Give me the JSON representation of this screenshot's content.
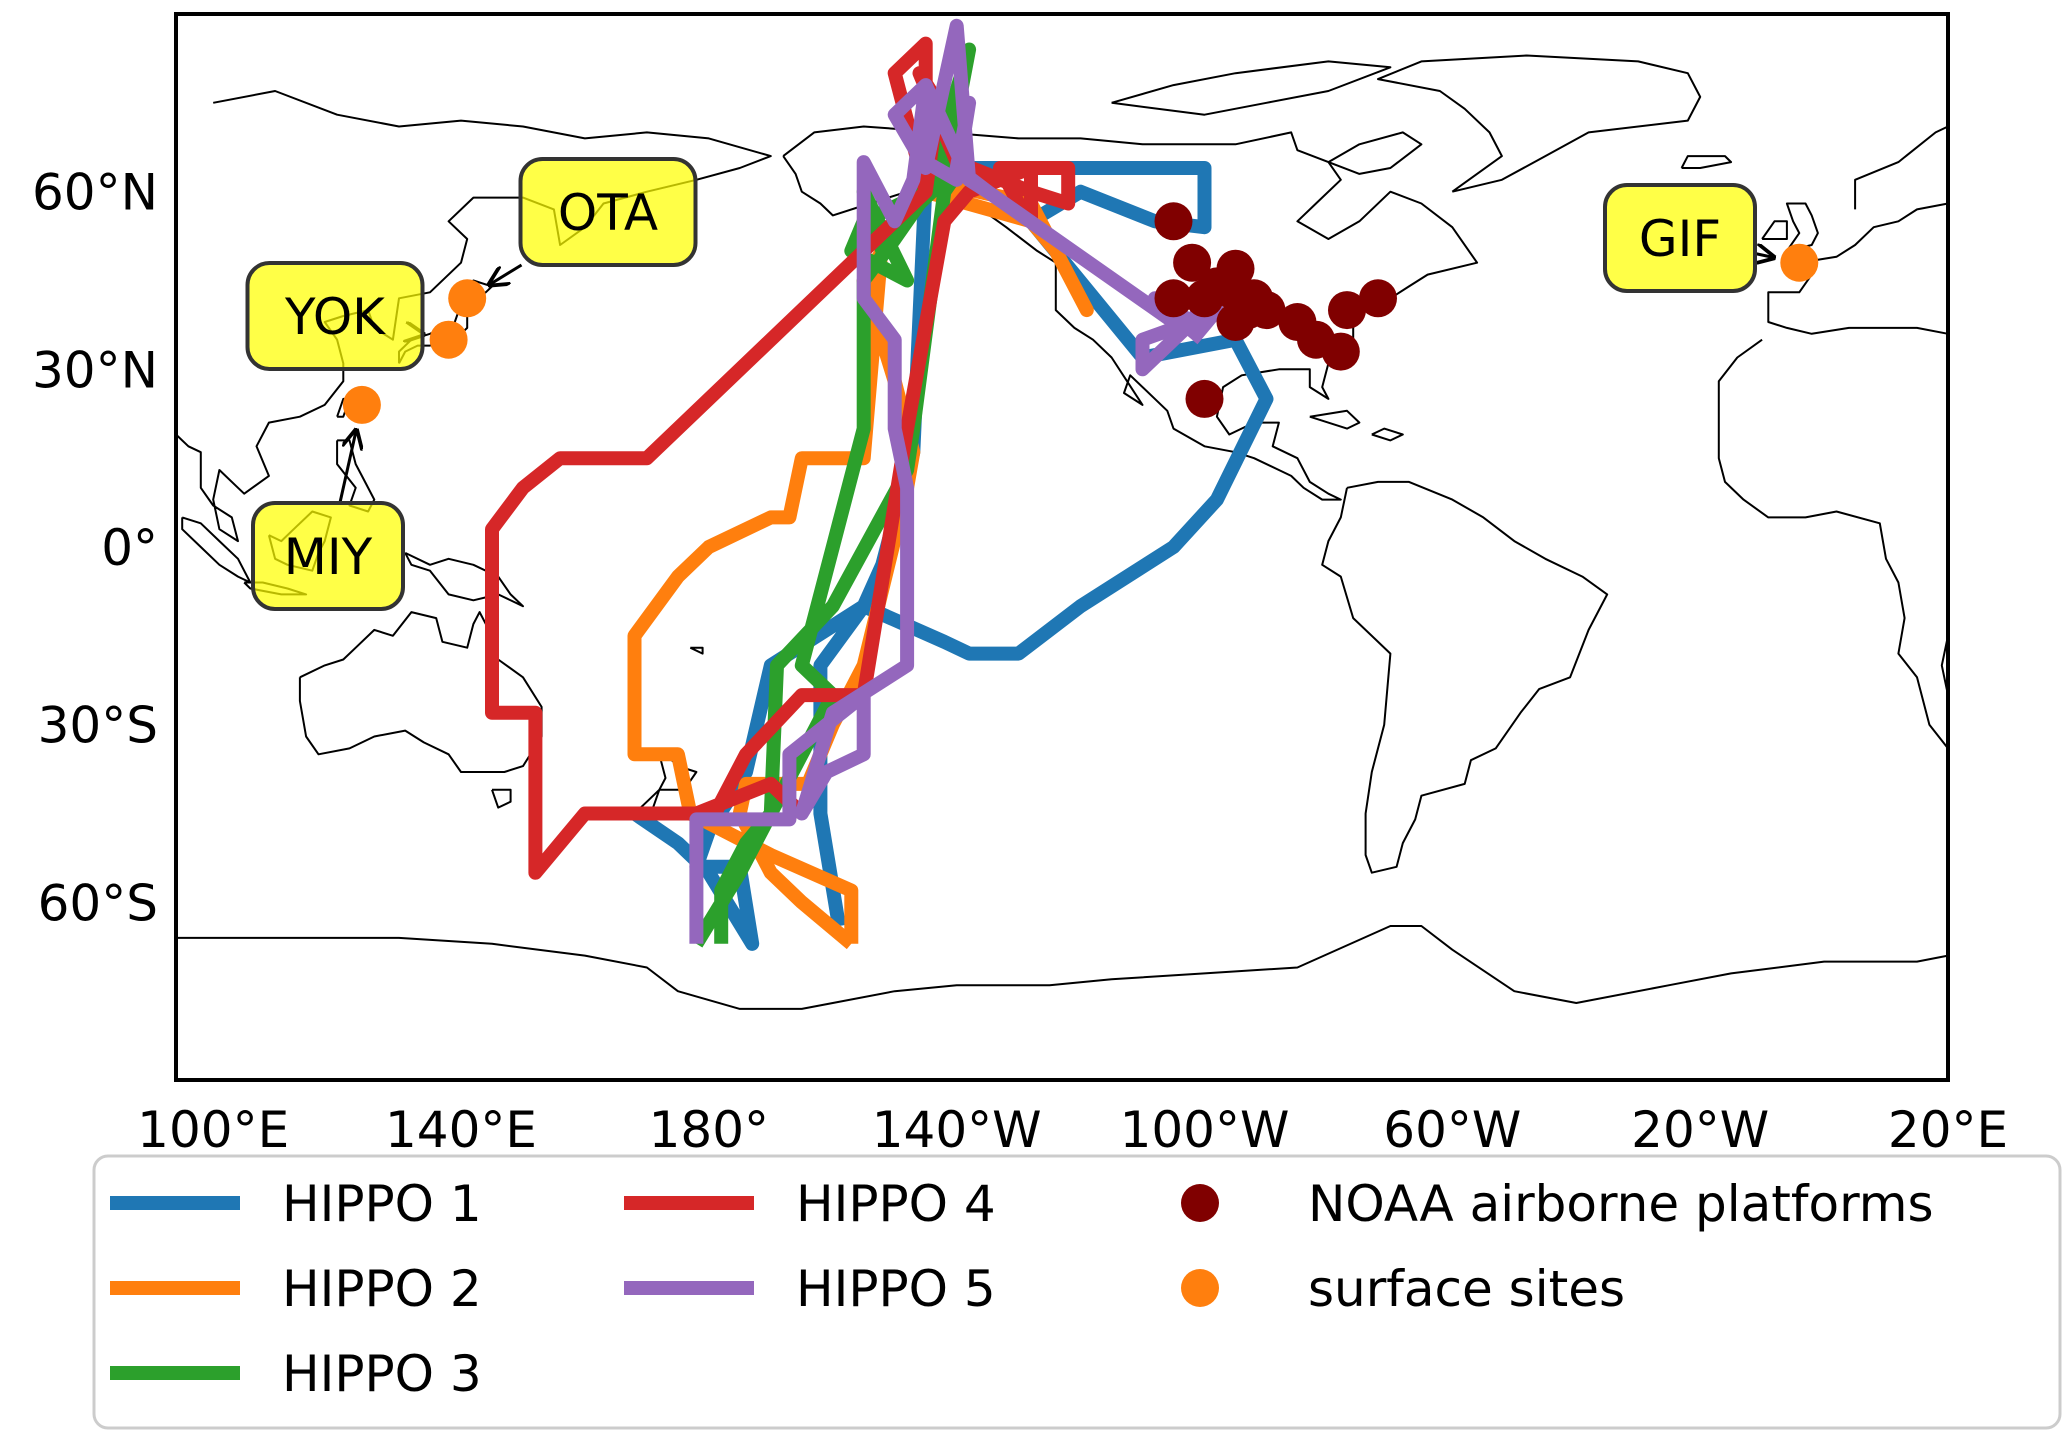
{
  "chart_data": {
    "type": "map",
    "title": "",
    "projection": "plate-carree",
    "xlabel": "",
    "ylabel": "",
    "lon_ticks": [
      {
        "value": 100,
        "label": "100°E"
      },
      {
        "value": 140,
        "label": "140°E"
      },
      {
        "value": 180,
        "label": "180°"
      },
      {
        "value": 220,
        "label": "140°W"
      },
      {
        "value": 260,
        "label": "100°W"
      },
      {
        "value": 300,
        "label": "60°W"
      },
      {
        "value": 340,
        "label": "20°W"
      },
      {
        "value": 380,
        "label": "20°E"
      }
    ],
    "lat_ticks": [
      {
        "value": 60,
        "label": "60°N"
      },
      {
        "value": 30,
        "label": "30°N"
      },
      {
        "value": 0,
        "label": "0°"
      },
      {
        "value": -30,
        "label": "30°S"
      },
      {
        "value": -60,
        "label": "60°S"
      }
    ],
    "series": [
      {
        "name": "HIPPO 1",
        "color": "#1f77b4",
        "points": [
          [
            201,
            -64
          ],
          [
            198,
            -45
          ],
          [
            198,
            -20
          ],
          [
            205,
            -10
          ],
          [
            208,
            -3
          ],
          [
            210,
            5
          ],
          [
            212,
            12
          ],
          [
            213,
            16
          ],
          [
            215,
            62
          ],
          [
            215,
            64
          ],
          [
            260,
            64
          ],
          [
            260,
            54
          ],
          [
            252,
            55
          ],
          [
            240,
            60
          ],
          [
            232,
            55
          ],
          [
            250,
            32
          ],
          [
            265,
            35
          ],
          [
            270,
            25
          ],
          [
            262,
            8
          ],
          [
            255,
            0
          ],
          [
            240,
            -10
          ],
          [
            230,
            -18
          ],
          [
            222,
            -18
          ],
          [
            218,
            -16
          ],
          [
            205,
            -10
          ],
          [
            190,
            -20
          ],
          [
            186,
            -38
          ],
          [
            180,
            -48
          ],
          [
            178,
            -54
          ],
          [
            185,
            -54
          ],
          [
            187,
            -67
          ],
          [
            180,
            -55
          ],
          [
            175,
            -50
          ],
          [
            168,
            -45
          ]
        ]
      },
      {
        "name": "HIPPO 2",
        "color": "#ff7f0e",
        "points": [
          [
            203,
            -67
          ],
          [
            195,
            -60
          ],
          [
            190,
            -55
          ],
          [
            185,
            -45
          ],
          [
            186,
            -40
          ],
          [
            196,
            -40
          ],
          [
            200,
            -30
          ],
          [
            205,
            -20
          ],
          [
            212,
            10
          ],
          [
            213,
            16
          ],
          [
            210,
            28
          ],
          [
            205,
            45
          ],
          [
            208,
            50
          ],
          [
            215,
            60
          ],
          [
            232,
            55
          ],
          [
            236,
            50
          ],
          [
            241,
            40
          ],
          [
            232,
            58
          ],
          [
            215,
            62
          ],
          [
            208,
            52
          ],
          [
            205,
            15
          ],
          [
            195,
            15
          ],
          [
            193,
            5
          ],
          [
            190,
            5
          ],
          [
            180,
            0
          ],
          [
            175,
            -5
          ],
          [
            168,
            -15
          ],
          [
            168,
            -35
          ],
          [
            175,
            -35
          ],
          [
            177,
            -45
          ],
          [
            190,
            -52
          ],
          [
            203,
            -58
          ],
          [
            203,
            -67
          ]
        ]
      },
      {
        "name": "HIPPO 3",
        "color": "#2ca02c",
        "points": [
          [
            182,
            -67
          ],
          [
            182,
            -58
          ],
          [
            186,
            -50
          ],
          [
            190,
            -45
          ],
          [
            191,
            -20
          ],
          [
            200,
            -10
          ],
          [
            212,
            13
          ],
          [
            213,
            20
          ],
          [
            218,
            60
          ],
          [
            220,
            63
          ],
          [
            215,
            60
          ],
          [
            205,
            55
          ],
          [
            203,
            50
          ],
          [
            212,
            45
          ],
          [
            205,
            60
          ],
          [
            208,
            50
          ],
          [
            215,
            60
          ],
          [
            222,
            84
          ],
          [
            218,
            62
          ],
          [
            214,
            58
          ],
          [
            210,
            52
          ],
          [
            205,
            45
          ],
          [
            205,
            20
          ],
          [
            200,
            0
          ],
          [
            195,
            -20
          ],
          [
            200,
            -25
          ],
          [
            190,
            -45
          ],
          [
            185,
            -55
          ],
          [
            178,
            -67
          ]
        ]
      },
      {
        "name": "HIPPO 4",
        "color": "#d62728",
        "points": [
          [
            178,
            -45
          ],
          [
            160,
            -45
          ],
          [
            152,
            -55
          ],
          [
            152,
            -28
          ],
          [
            145,
            -28
          ],
          [
            145,
            -10
          ],
          [
            145,
            3
          ],
          [
            150,
            10
          ],
          [
            156,
            15
          ],
          [
            160,
            15
          ],
          [
            170,
            15
          ],
          [
            215,
            60
          ],
          [
            215,
            85
          ],
          [
            210,
            80
          ],
          [
            215,
            60
          ],
          [
            217,
            75
          ],
          [
            214,
            80
          ],
          [
            220,
            65
          ],
          [
            232,
            60
          ],
          [
            238,
            58
          ],
          [
            238,
            64
          ],
          [
            227,
            64
          ],
          [
            230,
            58
          ],
          [
            232,
            55
          ],
          [
            232,
            64
          ],
          [
            222,
            60
          ],
          [
            218,
            55
          ],
          [
            212,
            20
          ],
          [
            205,
            -25
          ],
          [
            195,
            -25
          ],
          [
            186,
            -35
          ],
          [
            181,
            -45
          ],
          [
            178,
            -45
          ],
          [
            190,
            -40
          ],
          [
            195,
            -45
          ]
        ]
      },
      {
        "name": "HIPPO 5",
        "color": "#9467bd",
        "points": [
          [
            178,
            -67
          ],
          [
            178,
            -46
          ],
          [
            193,
            -46
          ],
          [
            193,
            -35
          ],
          [
            205,
            -25
          ],
          [
            205,
            -35
          ],
          [
            199,
            -38
          ],
          [
            195,
            -45
          ],
          [
            200,
            -28
          ],
          [
            212,
            -20
          ],
          [
            212,
            10
          ],
          [
            210,
            20
          ],
          [
            210,
            35
          ],
          [
            205,
            42
          ],
          [
            205,
            65
          ],
          [
            210,
            55
          ],
          [
            213,
            62
          ],
          [
            215,
            78
          ],
          [
            215,
            65
          ],
          [
            220,
            62
          ],
          [
            222,
            75
          ],
          [
            220,
            64
          ],
          [
            225,
            60
          ],
          [
            222,
            62
          ],
          [
            215,
            78
          ],
          [
            210,
            73
          ],
          [
            215,
            64
          ],
          [
            220,
            88
          ],
          [
            222,
            62
          ],
          [
            225,
            60
          ],
          [
            255,
            38
          ],
          [
            252,
            42
          ],
          [
            258,
            38
          ],
          [
            250,
            30
          ],
          [
            250,
            35
          ],
          [
            258,
            38
          ],
          [
            260,
            42
          ],
          [
            262,
            40
          ],
          [
            258,
            35
          ]
        ]
      }
    ],
    "point_series": [
      {
        "name": "NOAA airborne platforms",
        "color": "#800000",
        "points": [
          [
            255,
            55
          ],
          [
            258,
            48
          ],
          [
            265,
            47
          ],
          [
            262,
            44
          ],
          [
            260,
            42
          ],
          [
            265,
            43
          ],
          [
            268,
            42
          ],
          [
            270,
            40
          ],
          [
            267,
            40
          ],
          [
            265,
            38
          ],
          [
            275,
            38
          ],
          [
            278,
            35
          ],
          [
            283,
            40
          ],
          [
            288,
            42
          ],
          [
            282,
            33
          ],
          [
            260,
            25
          ],
          [
            255,
            42
          ]
        ]
      },
      {
        "name": "surface sites",
        "color": "#ff7f0e",
        "points": [
          [
            124,
            24
          ],
          [
            138,
            35
          ],
          [
            141,
            42
          ],
          [
            356,
            48
          ]
        ]
      }
    ],
    "sites": [
      {
        "label": "OTA",
        "lon": 141,
        "lat": 42
      },
      {
        "label": "YOK",
        "lon": 138,
        "lat": 35
      },
      {
        "label": "MIY",
        "lon": 124,
        "lat": 24
      },
      {
        "label": "GIF",
        "lon": 356,
        "lat": 48
      }
    ],
    "legend": {
      "placement": "bottom",
      "entries": [
        {
          "label": "HIPPO 1",
          "kind": "line",
          "color": "#1f77b4"
        },
        {
          "label": "HIPPO 2",
          "kind": "line",
          "color": "#ff7f0e"
        },
        {
          "label": "HIPPO 3",
          "kind": "line",
          "color": "#2ca02c"
        },
        {
          "label": "HIPPO 4",
          "kind": "line",
          "color": "#d62728"
        },
        {
          "label": "HIPPO 5",
          "kind": "line",
          "color": "#9467bd"
        },
        {
          "label": "NOAA airborne platforms",
          "kind": "dot",
          "color": "#800000"
        },
        {
          "label": "surface sites",
          "kind": "dot",
          "color": "#ff7f0e"
        }
      ]
    },
    "extent": {
      "lon_min": 94,
      "lon_max": 380,
      "lat_min": -90,
      "lat_max": 90
    },
    "grid": false
  }
}
